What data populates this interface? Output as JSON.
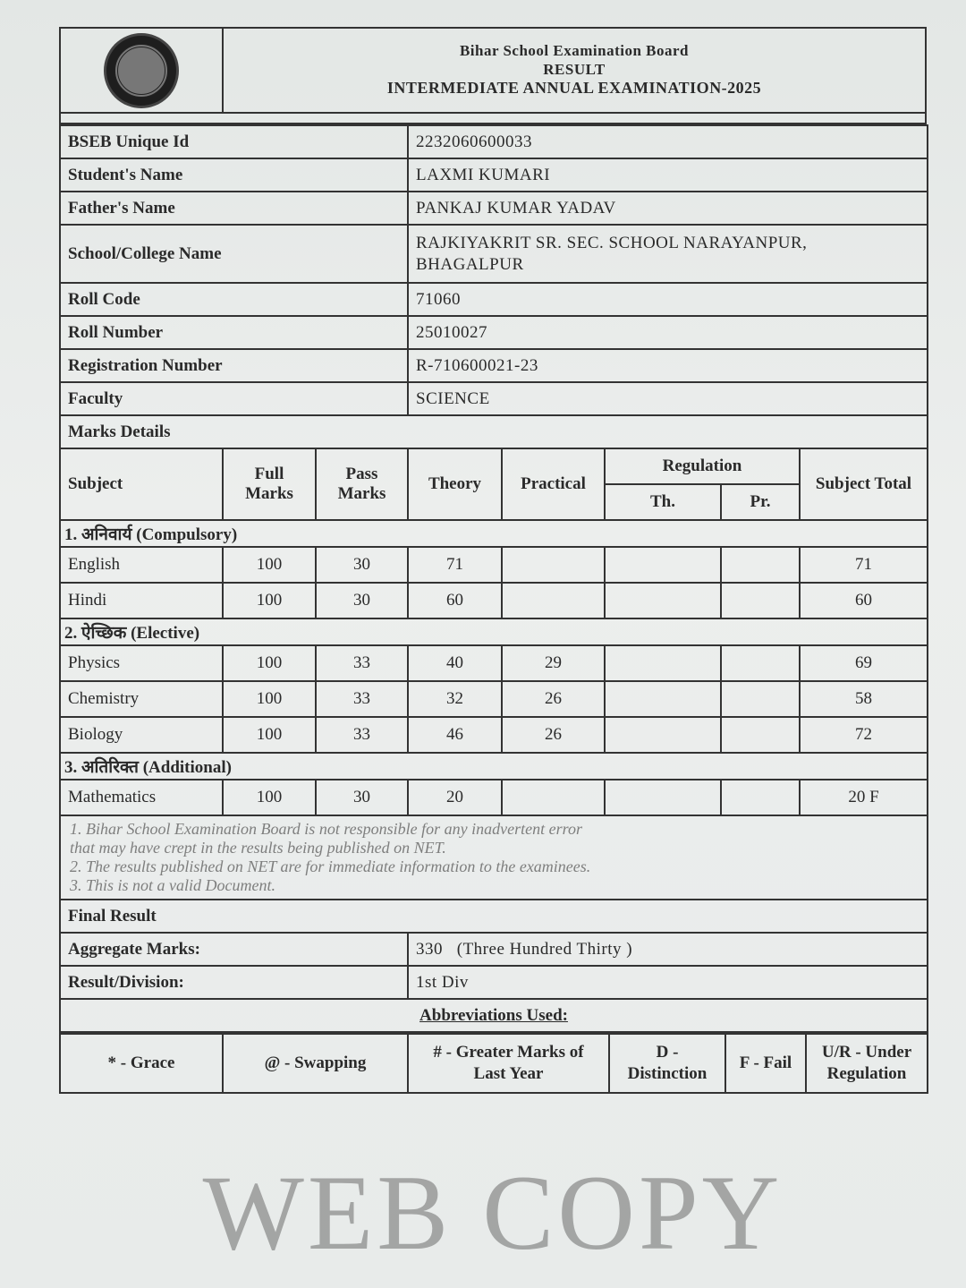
{
  "header": {
    "board": "Bihar School Examination Board",
    "doc_type": "RESULT",
    "exam": "INTERMEDIATE ANNUAL EXAMINATION-2025"
  },
  "info": [
    {
      "label": "BSEB Unique Id",
      "value": "2232060600033"
    },
    {
      "label": "Student's Name",
      "value": "LAXMI KUMARI"
    },
    {
      "label": "Father's Name",
      "value": "PANKAJ KUMAR YADAV"
    },
    {
      "label": "School/College Name",
      "value": "RAJKIYAKRIT SR. SEC. SCHOOL NARAYANPUR, BHAGALPUR"
    },
    {
      "label": "Roll Code",
      "value": "71060"
    },
    {
      "label": "Roll Number",
      "value": "25010027"
    },
    {
      "label": "Registration Number",
      "value": "R-710600021-23"
    },
    {
      "label": "Faculty",
      "value": "SCIENCE"
    }
  ],
  "marks": {
    "title": "Marks Details",
    "headers": {
      "subject": "Subject",
      "full": "Full Marks",
      "pass": "Pass Marks",
      "theory": "Theory",
      "practical": "Practical",
      "regulation": "Regulation",
      "reg_th": "Th.",
      "reg_pr": "Pr.",
      "total": "Subject Total"
    },
    "sections": [
      {
        "title": "1. अनिवार्य (Compulsory)",
        "rows": [
          {
            "subject": "English",
            "full": "100",
            "pass": "30",
            "theory": "71",
            "practical": "",
            "reg_th": "",
            "reg_pr": "",
            "total": "71"
          },
          {
            "subject": "Hindi",
            "full": "100",
            "pass": "30",
            "theory": "60",
            "practical": "",
            "reg_th": "",
            "reg_pr": "",
            "total": "60"
          }
        ]
      },
      {
        "title": "2. ऐच्छिक (Elective)",
        "rows": [
          {
            "subject": "Physics",
            "full": "100",
            "pass": "33",
            "theory": "40",
            "practical": "29",
            "reg_th": "",
            "reg_pr": "",
            "total": "69"
          },
          {
            "subject": "Chemistry",
            "full": "100",
            "pass": "33",
            "theory": "32",
            "practical": "26",
            "reg_th": "",
            "reg_pr": "",
            "total": "58"
          },
          {
            "subject": "Biology",
            "full": "100",
            "pass": "33",
            "theory": "46",
            "practical": "26",
            "reg_th": "",
            "reg_pr": "",
            "total": "72"
          }
        ]
      },
      {
        "title": "3. अतिरिक्त (Additional)",
        "rows": [
          {
            "subject": "Mathematics",
            "full": "100",
            "pass": "30",
            "theory": "20",
            "practical": "",
            "reg_th": "",
            "reg_pr": "",
            "total": "20 F"
          }
        ]
      }
    ]
  },
  "final": {
    "title": "Final Result",
    "aggregate_label": "Aggregate Marks:",
    "aggregate_value": "330",
    "aggregate_words": "(Three Hundred Thirty )",
    "division_label": "Result/Division:",
    "division_value": "1st Div"
  },
  "abbreviations": {
    "title": "Abbreviations Used:",
    "items": [
      "* - Grace",
      "@ - Swapping",
      "# - Greater Marks of Last Year",
      "D - Distinction",
      "F - Fail",
      "U/R - Under Regulation"
    ]
  },
  "watermark": {
    "big": "WEB COPY",
    "lines": [
      "1. Bihar School Examination Board is not responsible for any inadvertent error",
      "that may have crept in the results being published on NET.",
      "2. The results published on NET are for immediate information to the examinees.",
      "3. This is not a valid Document."
    ]
  }
}
